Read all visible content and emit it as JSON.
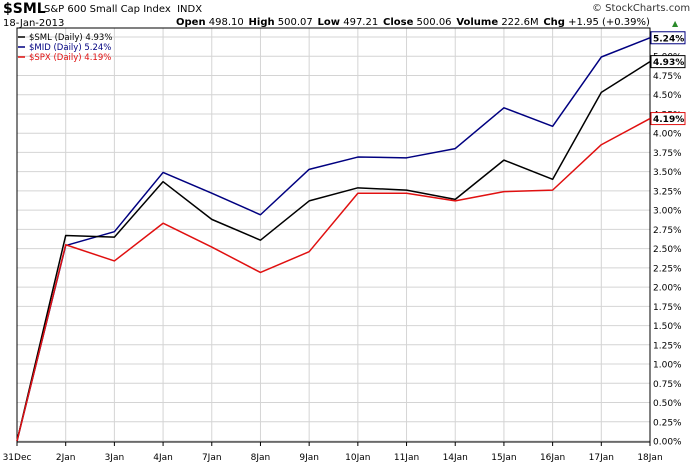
{
  "header": {
    "symbol": "$SML",
    "company": "S&P 600 Small Cap Index",
    "exchange": "INDX",
    "date": "18-Jan-2013",
    "open_label": "Open",
    "open_value": "498.10",
    "high_label": "High",
    "high_value": "500.07",
    "low_label": "Low",
    "low_value": "497.21",
    "close_label": "Close",
    "close_value": "500.06",
    "volume_label": "Volume",
    "volume_value": "222.6M",
    "chg_label": "Chg",
    "chg_value": "+1.95 (+0.39%)",
    "logo": "© StockCharts.com"
  },
  "chart_data": {
    "type": "line",
    "categories": [
      "31Dec",
      "2Jan",
      "3Jan",
      "4Jan",
      "7Jan",
      "8Jan",
      "9Jan",
      "10Jan",
      "11Jan",
      "14Jan",
      "15Jan",
      "16Jan",
      "17Jan",
      "18Jan"
    ],
    "ylim": [
      0,
      5.25
    ],
    "y_ticks": [
      "0.00%",
      "0.25%",
      "0.50%",
      "0.75%",
      "1.00%",
      "1.25%",
      "1.50%",
      "1.75%",
      "2.00%",
      "2.25%",
      "2.50%",
      "2.75%",
      "3.00%",
      "3.25%",
      "3.50%",
      "3.75%",
      "4.00%",
      "4.25%",
      "4.50%",
      "4.75%",
      "5.00%",
      "5.25%"
    ],
    "grid": true,
    "legend_position": "top-left",
    "series": [
      {
        "name": "$SML (Daily) 4.93%",
        "color": "#000000",
        "end_label": "4.93%",
        "values": [
          0.0,
          2.67,
          2.65,
          3.37,
          2.88,
          2.61,
          3.12,
          3.29,
          3.26,
          3.14,
          3.65,
          3.4,
          4.53,
          4.93
        ]
      },
      {
        "name": "$MID (Daily) 5.24%",
        "color": "#000080",
        "end_label": "5.24%",
        "values": [
          0.0,
          2.54,
          2.72,
          3.49,
          3.22,
          2.94,
          3.53,
          3.69,
          3.68,
          3.8,
          4.33,
          4.09,
          4.99,
          5.24
        ]
      },
      {
        "name": "$SPX (Daily) 4.19%",
        "color": "#e01010",
        "end_label": "4.19%",
        "values": [
          0.0,
          2.55,
          2.34,
          2.83,
          2.52,
          2.19,
          2.46,
          3.22,
          3.22,
          3.12,
          3.24,
          3.26,
          3.85,
          4.19
        ]
      }
    ]
  }
}
